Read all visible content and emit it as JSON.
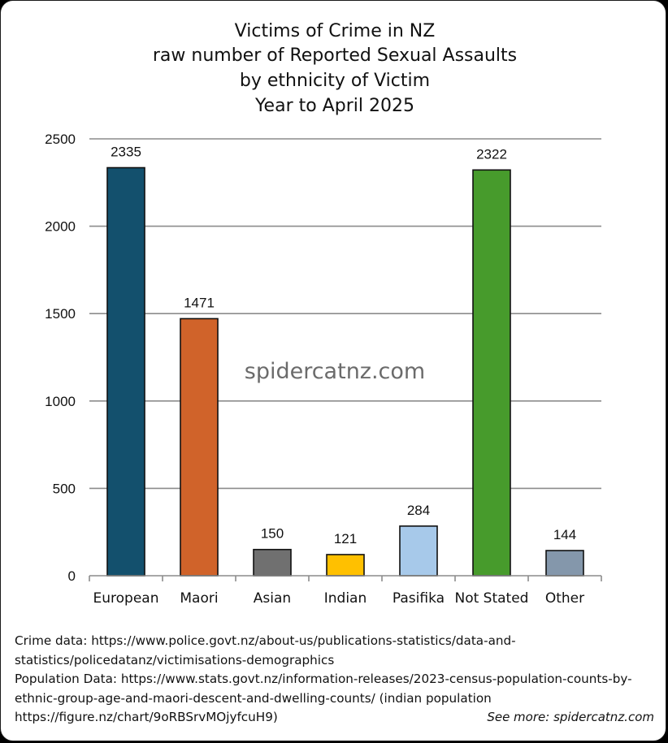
{
  "chart_data": {
    "type": "bar",
    "title_lines": [
      "Victims of Crime in NZ",
      "raw number of Reported Sexual Assaults",
      "by ethnicity of Victim",
      "Year to April 2025"
    ],
    "categories": [
      "European",
      "Maori",
      "Asian",
      "Indian",
      "Pasifika",
      "Not Stated",
      "Other"
    ],
    "values": [
      2335,
      1471,
      150,
      121,
      284,
      2322,
      144
    ],
    "data_labels": [
      "2335",
      "1471",
      "150",
      "121",
      "284",
      "2322",
      "144"
    ],
    "colors": [
      "#13506d",
      "#d0632a",
      "#707070",
      "#ffc000",
      "#a7c9ea",
      "#479b2c",
      "#8497ab"
    ],
    "ylim": [
      0,
      2500
    ],
    "yticks": [
      0,
      500,
      1000,
      1500,
      2000,
      2500
    ],
    "ytick_labels": [
      "0",
      "500",
      "1000",
      "1500",
      "2000",
      "2500"
    ],
    "grid": true,
    "xlabel": "",
    "ylabel": ""
  },
  "watermark": "spidercatnz.com",
  "footer": {
    "lines": [
      "Crime data: https://www.police.govt.nz/about-us/publications-statistics/data-and-",
      "statistics/policedatanz/victimisations-demographics",
      "Population Data: https://www.stats.govt.nz/information-releases/2023-census-population-counts-by-",
      "ethnic-group-age-and-maori-descent-and-dwelling-counts/ (indian population",
      "https://figure.nz/chart/9oRBSrvMOjyfcuH9)"
    ],
    "see_more": "See more: spidercatnz.com"
  }
}
